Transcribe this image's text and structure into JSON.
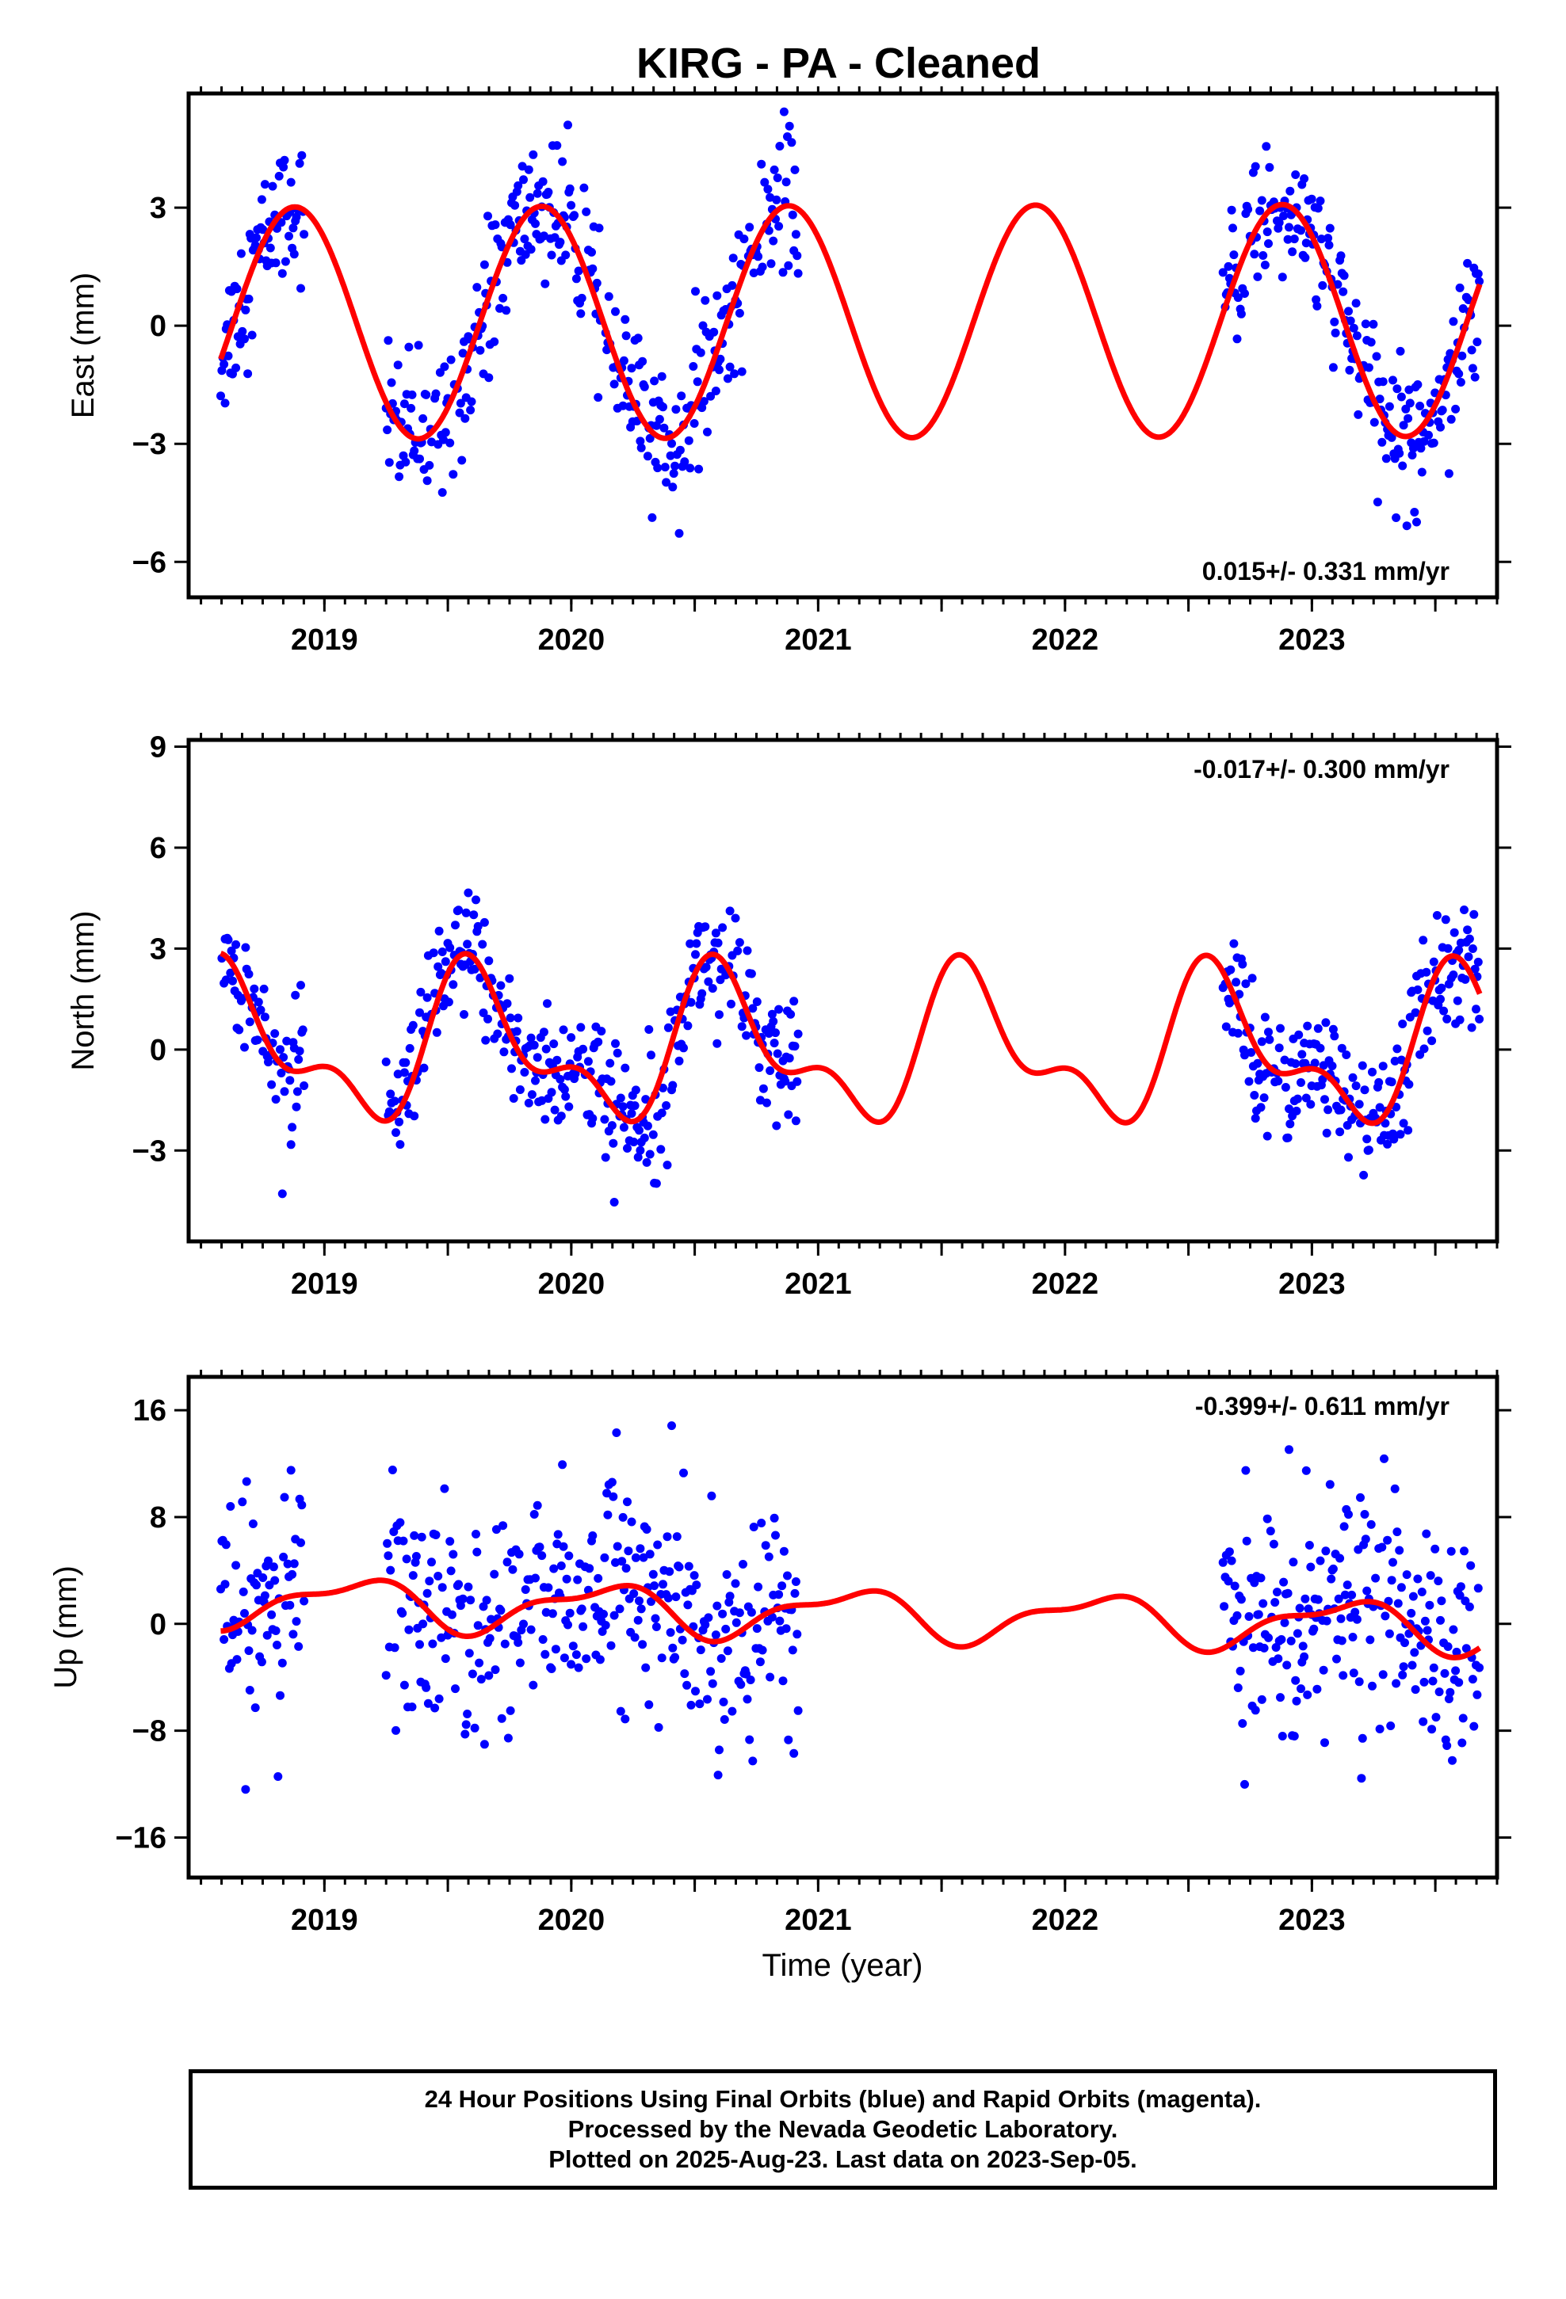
{
  "title": "KIRG  - PA - Cleaned",
  "xlabel": "Time (year)",
  "colors": {
    "data": "#0000ff",
    "model": "#ff0000",
    "axis": "#000000"
  },
  "footer": {
    "line1": "24 Hour Positions Using Final Orbits (blue) and Rapid Orbits (magenta).",
    "line2": "Processed by the Nevada Geodetic Laboratory.",
    "line3": "Plotted on 2025-Aug-23. Last data on 2023-Sep-05."
  },
  "chart_data": [
    {
      "type": "scatter",
      "component": "east",
      "ylabel": "East (mm)",
      "xlim": [
        2018.45,
        2023.75
      ],
      "ylim": [
        -6.9,
        5.9
      ],
      "xticks": [
        2019,
        2020,
        2021,
        2022,
        2023
      ],
      "yticks": [
        -6,
        -3,
        0,
        3
      ],
      "rate_label": "0.015+/- 0.331 mm/yr",
      "rate_position": "bottom-right",
      "data_segments": [
        [
          2018.58,
          2018.92
        ],
        [
          2019.25,
          2020.92
        ],
        [
          2022.64,
          2023.68
        ]
      ],
      "model": {
        "annual_amplitude": 2.95,
        "annual_peak": 2018.88,
        "semiannual_amplitude": 0.0,
        "semiannual_peak": 0.0,
        "offset": 0.1,
        "rate": 0.015
      },
      "scatter_sigma": 0.9,
      "series": [
        {
          "name": "",
          "style": "points",
          "color": "#0000ff"
        },
        {
          "name": "",
          "style": "line",
          "color": "#ff0000"
        }
      ]
    },
    {
      "type": "scatter",
      "component": "north",
      "ylabel": "North (mm)",
      "xlim": [
        2018.45,
        2023.75
      ],
      "ylim": [
        -5.7,
        9.2
      ],
      "xticks": [
        2019,
        2020,
        2021,
        2022,
        2023
      ],
      "yticks": [
        -3,
        0,
        3,
        6,
        9
      ],
      "rate_label": "-0.017+/- 0.300 mm/yr",
      "rate_position": "top-right",
      "data_segments": [
        [
          2018.58,
          2018.92
        ],
        [
          2019.25,
          2020.92
        ],
        [
          2022.64,
          2023.68
        ]
      ],
      "model": {
        "annual_amplitude": 1.9,
        "annual_peak": 2018.62,
        "semiannual_amplitude": 1.05,
        "semiannual_peak": 2018.55,
        "offset": 0.0,
        "rate": -0.017
      },
      "scatter_sigma": 0.95,
      "series": [
        {
          "name": "",
          "style": "points",
          "color": "#0000ff"
        },
        {
          "name": "",
          "style": "line",
          "color": "#ff0000"
        }
      ]
    },
    {
      "type": "scatter",
      "component": "up",
      "ylabel": "Up (mm)",
      "xlim": [
        2018.45,
        2023.75
      ],
      "ylim": [
        -19.0,
        18.5
      ],
      "xticks": [
        2019,
        2020,
        2021,
        2022,
        2023
      ],
      "yticks": [
        -16,
        -8,
        0,
        8,
        16
      ],
      "rate_label": "-0.399+/- 0.611 mm/yr",
      "rate_position": "top-right",
      "data_segments": [
        [
          2018.58,
          2018.92
        ],
        [
          2019.25,
          2020.92
        ],
        [
          2022.64,
          2023.68
        ]
      ],
      "model": {
        "annual_amplitude": 1.7,
        "annual_peak": 2019.12,
        "semiannual_amplitude": 0.7,
        "semiannual_peak": 2019.3,
        "offset": 0.8,
        "rate": -0.399
      },
      "scatter_sigma": 4.2,
      "series": [
        {
          "name": "",
          "style": "points",
          "color": "#0000ff"
        },
        {
          "name": "",
          "style": "line",
          "color": "#ff0000"
        }
      ]
    }
  ]
}
